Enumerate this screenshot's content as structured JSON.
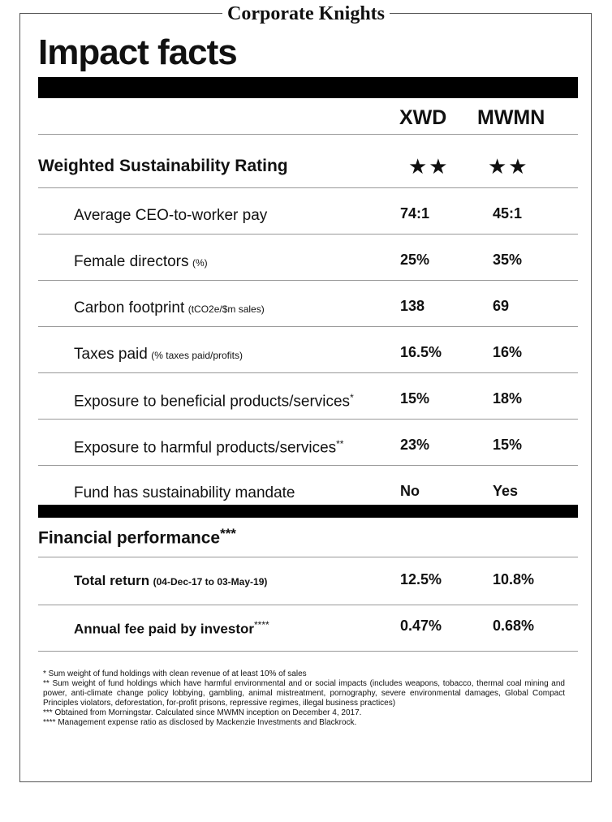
{
  "header": {
    "brand": "Corporate Knights",
    "title": "Impact facts"
  },
  "columns": [
    "XWD",
    "MWMN"
  ],
  "rating": {
    "label": "Weighted Sustainability Rating",
    "values": [
      "★★",
      "★★"
    ]
  },
  "rows": [
    {
      "label": "Average CEO-to-worker pay",
      "values": [
        "74:1",
        "45:1"
      ]
    },
    {
      "label": "Female directors",
      "note": "(%)",
      "values": [
        "25%",
        "35%"
      ]
    },
    {
      "label": "Carbon footprint",
      "note": "(tCO2e/$m sales)",
      "values": [
        "138",
        "69"
      ]
    },
    {
      "label": "Taxes paid",
      "note": "(% taxes paid/profits)",
      "values": [
        "16.5%",
        "16%"
      ]
    },
    {
      "label": "Exposure to beneficial products/services",
      "mark": "*",
      "values": [
        "15%",
        "18%"
      ]
    },
    {
      "label": "Exposure to harmful products/services",
      "mark": "**",
      "values": [
        "23%",
        "15%"
      ]
    },
    {
      "label": "Fund has sustainability mandate",
      "values": [
        "No",
        "Yes"
      ]
    }
  ],
  "financial": {
    "title": "Financial performance",
    "mark": "***",
    "rows": [
      {
        "label": "Total return",
        "note": "(04-Dec-17 to 03-May-19)",
        "values": [
          "12.5%",
          "10.8%"
        ]
      },
      {
        "label": "Annual fee paid by investor",
        "mark": "****",
        "values": [
          "0.47%",
          "0.68%"
        ]
      }
    ]
  },
  "footnotes": [
    "* Sum weight of fund holdings with clean revenue of at least 10% of sales",
    "** Sum weight of fund holdings which have harmful environmental and or social impacts (includes weapons, tobacco, thermal coal mining and power, anti-climate change policy lobbying, gambling, animal mistreatment, pornography, severe environmental damages, Global Compact Principles violators, deforestation, for-profit prisons, repressive regimes, illegal business practices)",
    "*** Obtained from Morningstar. Calculated since MWMN inception on December 4, 2017.",
    "**** Management expense ratio as disclosed by Mackenzie Investments and Blackrock."
  ]
}
